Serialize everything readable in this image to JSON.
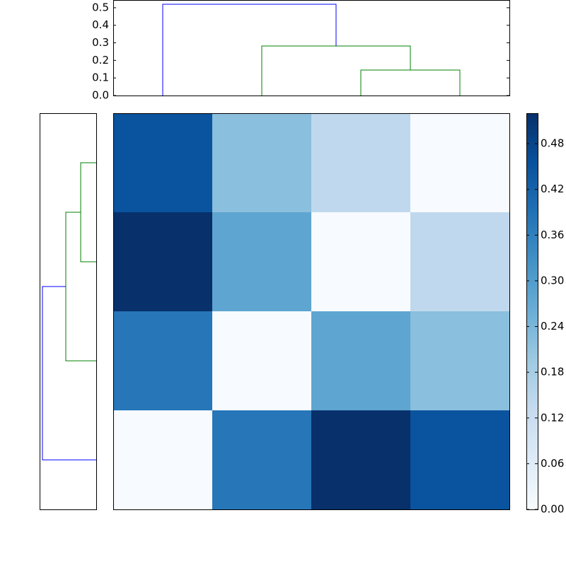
{
  "chart_data": [
    {
      "type": "dendrogram",
      "orientation": "top",
      "xlim": [
        0,
        40
      ],
      "ylim": [
        0,
        0.544
      ],
      "yticks": [
        {
          "value": 0,
          "label": "0.0"
        },
        0.1,
        0.2,
        0.3,
        0.4,
        0.5
      ],
      "links": [
        {
          "color": "#008000",
          "pos": [
            25,
            25,
            35,
            35
          ],
          "height": [
            0,
            0.145,
            0.145,
            0
          ]
        },
        {
          "color": "#008000",
          "pos": [
            15,
            15,
            30,
            30
          ],
          "height": [
            0,
            0.282,
            0.282,
            0.145
          ]
        },
        {
          "color": "#0000ff",
          "pos": [
            5,
            5,
            22.5,
            22.5
          ],
          "height": [
            0,
            0.52,
            0.52,
            0.282
          ]
        }
      ]
    },
    {
      "type": "dendrogram",
      "orientation": "left",
      "xlim": [
        0,
        0.547
      ],
      "ylim": [
        0,
        40
      ],
      "links": [
        {
          "color": "#008000",
          "pos": [
            35,
            35,
            25,
            25
          ],
          "height": [
            0,
            0.15,
            0.15,
            0
          ]
        },
        {
          "color": "#008000",
          "pos": [
            30,
            30,
            15,
            15
          ],
          "height": [
            0.15,
            0.294,
            0.294,
            0
          ]
        },
        {
          "color": "#0000ff",
          "pos": [
            22.5,
            22.5,
            5,
            5
          ],
          "height": [
            0.294,
            0.52,
            0.52,
            0
          ]
        }
      ]
    },
    {
      "type": "heatmap",
      "colormap": "Blues",
      "values": [
        [
          0.45,
          0.22,
          0.14,
          0
        ],
        [
          0.52,
          0.28,
          0,
          0.14
        ],
        [
          0.38,
          0,
          0.28,
          0.22
        ],
        [
          0,
          0.38,
          0.52,
          0.45
        ]
      ],
      "clim": [
        0,
        0.52
      ],
      "cticks": [
        {
          "value": 0,
          "label": "0.00"
        },
        0.06,
        0.12,
        0.18,
        0.24,
        {
          "value": 0.3,
          "label": "0.30"
        },
        0.36,
        0.42,
        0.48
      ]
    }
  ]
}
